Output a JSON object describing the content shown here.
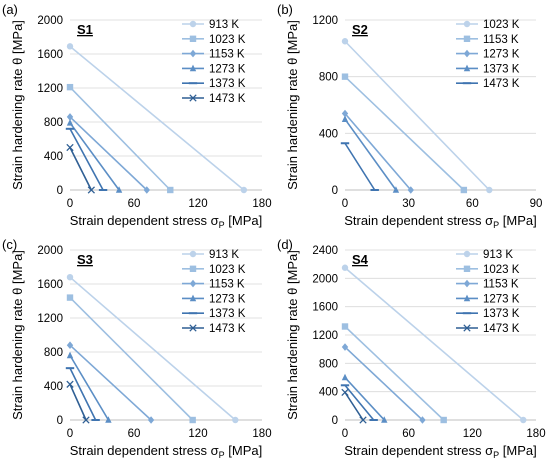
{
  "figure": {
    "x_axis_label": "Strain dependent stress σ",
    "x_axis_sub": "P",
    "x_axis_unit": " [MPa]",
    "y_axis_label": "Strain hardening rate θ [MPa]"
  },
  "chart_data": [
    {
      "type": "line",
      "panel_label": "(a)",
      "title": "S1",
      "xlim": [
        0,
        180
      ],
      "ylim": [
        0,
        2000
      ],
      "x_ticks": [
        0,
        60,
        120,
        180
      ],
      "y_ticks": [
        0,
        400,
        800,
        1200,
        1600,
        2000
      ],
      "grid": "horizontal",
      "legend": "top-right",
      "series": [
        {
          "name": "913 K",
          "color": "#bcd2ea",
          "marker": "circle",
          "x": [
            0,
            163
          ],
          "y": [
            1690,
            0
          ]
        },
        {
          "name": "1023 K",
          "color": "#9dbfe1",
          "marker": "square",
          "x": [
            0,
            94
          ],
          "y": [
            1210,
            0
          ]
        },
        {
          "name": "1153 K",
          "color": "#7ea8d6",
          "marker": "diamond",
          "x": [
            0,
            72
          ],
          "y": [
            860,
            0
          ]
        },
        {
          "name": "1273 K",
          "color": "#5b8ec5",
          "marker": "triangle",
          "x": [
            0,
            46
          ],
          "y": [
            790,
            0
          ]
        },
        {
          "name": "1373 K",
          "color": "#3f74b0",
          "marker": "dash",
          "x": [
            0,
            31
          ],
          "y": [
            720,
            0
          ]
        },
        {
          "name": "1473 K",
          "color": "#2f5f94",
          "marker": "x",
          "x": [
            0,
            20
          ],
          "y": [
            500,
            0
          ]
        }
      ]
    },
    {
      "type": "line",
      "panel_label": "(b)",
      "title": "S2",
      "xlim": [
        0,
        90
      ],
      "ylim": [
        0,
        1200
      ],
      "x_ticks": [
        0,
        30,
        60,
        90
      ],
      "y_ticks": [
        0,
        400,
        800,
        1200
      ],
      "grid": "horizontal",
      "legend": "top-right",
      "series": [
        {
          "name": "1023 K",
          "color": "#bcd2ea",
          "marker": "circle",
          "x": [
            0,
            68
          ],
          "y": [
            1050,
            0
          ]
        },
        {
          "name": "1153 K",
          "color": "#9dbfe1",
          "marker": "square",
          "x": [
            0,
            56
          ],
          "y": [
            800,
            0
          ]
        },
        {
          "name": "1273 K",
          "color": "#7ea8d6",
          "marker": "diamond",
          "x": [
            0,
            31
          ],
          "y": [
            540,
            0
          ]
        },
        {
          "name": "1373 K",
          "color": "#5b8ec5",
          "marker": "triangle",
          "x": [
            0,
            24
          ],
          "y": [
            500,
            0
          ]
        },
        {
          "name": "1473 K",
          "color": "#3f74b0",
          "marker": "dash",
          "x": [
            0,
            14
          ],
          "y": [
            330,
            0
          ]
        }
      ]
    },
    {
      "type": "line",
      "panel_label": "(c)",
      "title": "S3",
      "xlim": [
        0,
        180
      ],
      "ylim": [
        0,
        2000
      ],
      "x_ticks": [
        0,
        60,
        120,
        180
      ],
      "y_ticks": [
        0,
        400,
        800,
        1200,
        1600,
        2000
      ],
      "grid": "horizontal",
      "legend": "top-right",
      "series": [
        {
          "name": "913 K",
          "color": "#bcd2ea",
          "marker": "circle",
          "x": [
            0,
            155
          ],
          "y": [
            1680,
            0
          ]
        },
        {
          "name": "1023 K",
          "color": "#9dbfe1",
          "marker": "square",
          "x": [
            0,
            115
          ],
          "y": [
            1440,
            0
          ]
        },
        {
          "name": "1153 K",
          "color": "#7ea8d6",
          "marker": "diamond",
          "x": [
            0,
            76
          ],
          "y": [
            880,
            0
          ]
        },
        {
          "name": "1273 K",
          "color": "#5b8ec5",
          "marker": "triangle",
          "x": [
            0,
            36
          ],
          "y": [
            760,
            0
          ]
        },
        {
          "name": "1373 K",
          "color": "#3f74b0",
          "marker": "dash",
          "x": [
            0,
            24
          ],
          "y": [
            610,
            0
          ]
        },
        {
          "name": "1473 K",
          "color": "#2f5f94",
          "marker": "x",
          "x": [
            0,
            15
          ],
          "y": [
            420,
            0
          ]
        }
      ]
    },
    {
      "type": "line",
      "panel_label": "(d)",
      "title": "S4",
      "xlim": [
        0,
        180
      ],
      "ylim": [
        0,
        2400
      ],
      "x_ticks": [
        0,
        60,
        120,
        180
      ],
      "y_ticks": [
        0,
        400,
        800,
        1200,
        1600,
        2000,
        2400
      ],
      "grid": "horizontal",
      "legend": "top-right",
      "series": [
        {
          "name": "913 K",
          "color": "#bcd2ea",
          "marker": "circle",
          "x": [
            0,
            168
          ],
          "y": [
            2150,
            0
          ]
        },
        {
          "name": "1023 K",
          "color": "#9dbfe1",
          "marker": "square",
          "x": [
            0,
            93
          ],
          "y": [
            1320,
            0
          ]
        },
        {
          "name": "1153 K",
          "color": "#7ea8d6",
          "marker": "diamond",
          "x": [
            0,
            73
          ],
          "y": [
            1030,
            0
          ]
        },
        {
          "name": "1273 K",
          "color": "#5b8ec5",
          "marker": "triangle",
          "x": [
            0,
            37
          ],
          "y": [
            600,
            0
          ]
        },
        {
          "name": "1373 K",
          "color": "#3f74b0",
          "marker": "dash",
          "x": [
            0,
            27
          ],
          "y": [
            490,
            0
          ]
        },
        {
          "name": "1473 K",
          "color": "#2f5f94",
          "marker": "x",
          "x": [
            0,
            17
          ],
          "y": [
            390,
            0
          ]
        }
      ]
    }
  ]
}
